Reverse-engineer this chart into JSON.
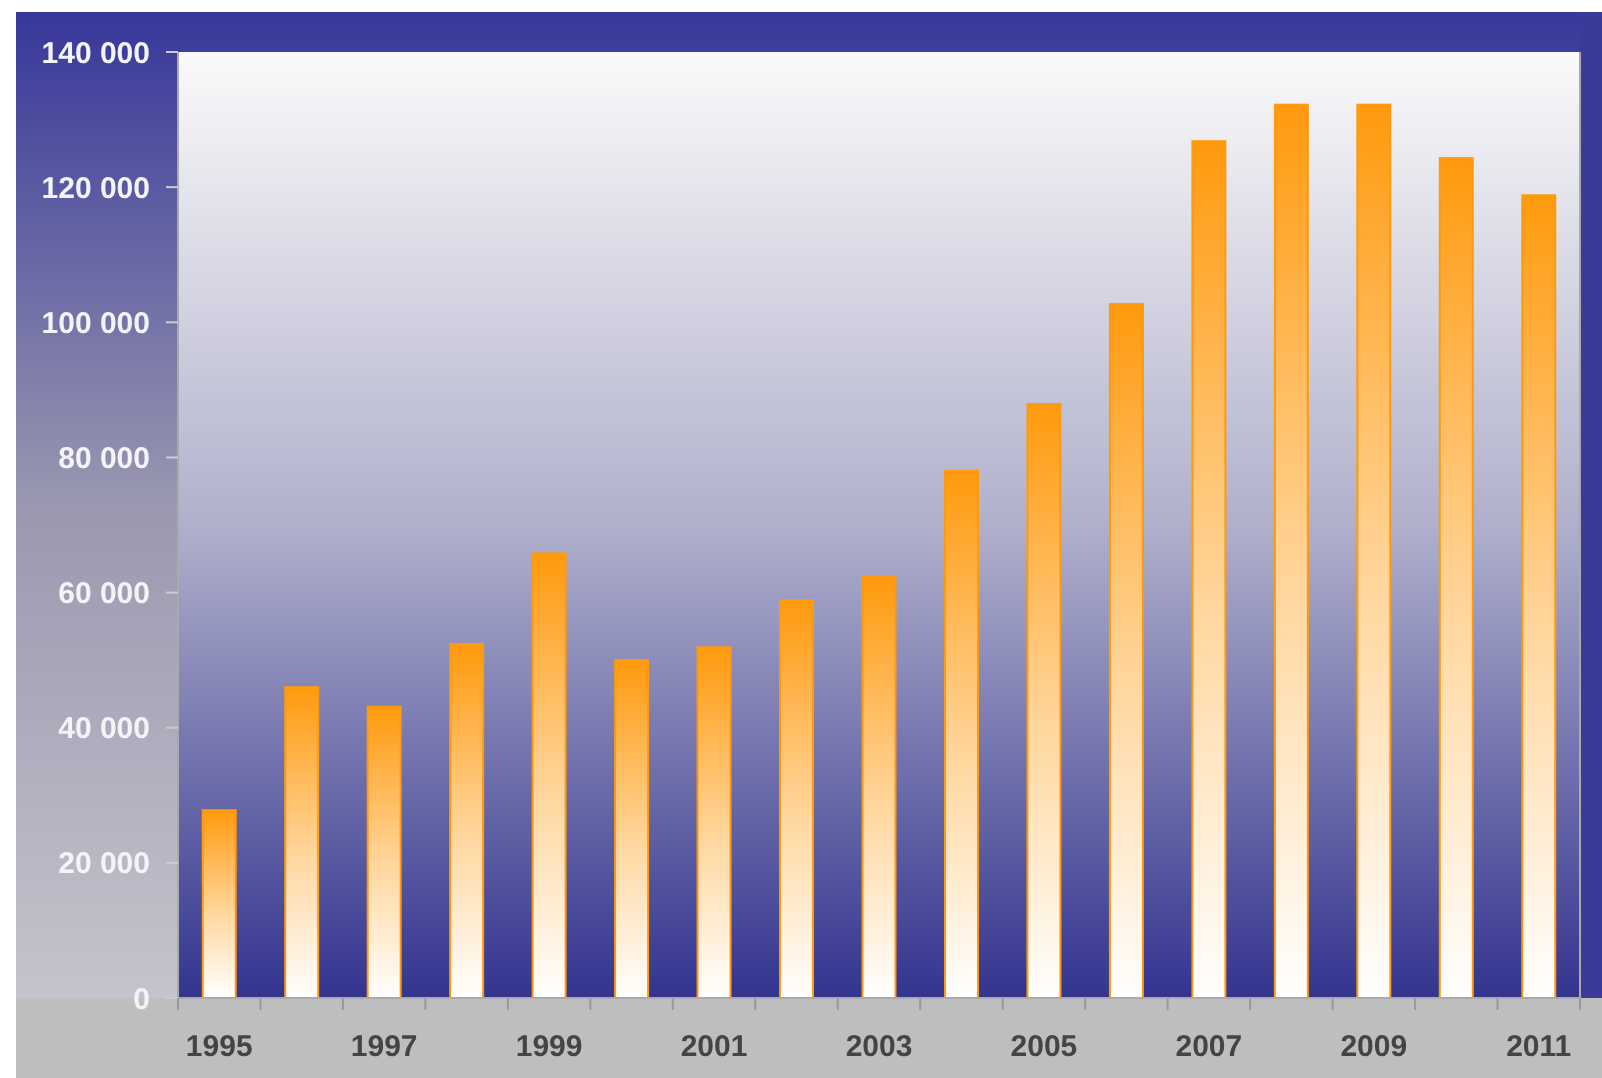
{
  "chart_data": {
    "type": "bar",
    "categories": [
      "1995",
      null,
      "1997",
      null,
      "1999",
      null,
      "2001",
      null,
      "2003",
      null,
      "2005",
      null,
      "2007",
      null,
      "2009",
      null,
      "2011"
    ],
    "values": [
      27800,
      46000,
      43100,
      52400,
      65800,
      50000,
      51900,
      58900,
      62300,
      78000,
      87900,
      102700,
      126800,
      132200,
      132200,
      124300,
      118800
    ],
    "color": "#ff9a0e",
    "ylim": [
      0,
      140000
    ],
    "yticks": [
      0,
      {
        "value": 20000,
        "label": "20 000"
      },
      {
        "value": 40000,
        "label": "40 000"
      },
      {
        "value": 60000,
        "label": "60 000"
      },
      {
        "value": 80000,
        "label": "80 000"
      },
      {
        "value": 100000,
        "label": "100 000"
      },
      {
        "value": 120000,
        "label": "120 000"
      },
      {
        "value": 140000,
        "label": "140 000"
      }
    ],
    "grid": false
  }
}
